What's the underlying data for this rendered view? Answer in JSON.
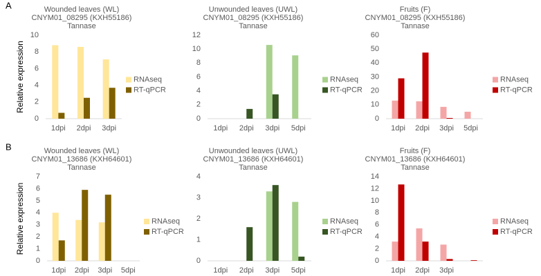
{
  "chart_data": [
    {
      "type": "bar",
      "panel": "A",
      "ylabel": "Relative expression",
      "title_lines": [
        "Wounded leaves (WL)",
        "CNYM01_08295 (KXH55186)",
        "Tannase"
      ],
      "categories": [
        "1dpi",
        "2dpi",
        "3dpi"
      ],
      "series": [
        {
          "name": "RNAseq",
          "color": "#ffe699",
          "values": [
            8.8,
            8.6,
            7.1
          ]
        },
        {
          "name": "RT-qPCR",
          "color": "#7f6000",
          "values": [
            0.7,
            2.5,
            3.7
          ]
        }
      ],
      "ylim": [
        0,
        10
      ],
      "yticks": [
        0,
        2,
        4,
        6,
        8,
        10
      ],
      "grid": false
    },
    {
      "type": "bar",
      "title_lines": [
        "Unwounded leaves (UWL)",
        "CNYM01_08295 (KXH55186)",
        "Tannase"
      ],
      "categories": [
        "1dpi",
        "2dpi",
        "3dpi",
        "5dpi"
      ],
      "series": [
        {
          "name": "RNAseq",
          "color": "#a9d18e",
          "values": [
            null,
            null,
            10.6,
            9.1
          ]
        },
        {
          "name": "RT-qPCR",
          "color": "#375623",
          "values": [
            null,
            1.4,
            3.5,
            null
          ]
        }
      ],
      "ylim": [
        0,
        12
      ],
      "yticks": [
        0,
        2,
        4,
        6,
        8,
        10,
        12
      ],
      "grid": false
    },
    {
      "type": "bar",
      "title_lines": [
        "Fruits (F)",
        "CNYM01_08295 (KXH55186)",
        "Tannase"
      ],
      "categories": [
        "1dpi",
        "2dpi",
        "3dpi",
        "5dpi"
      ],
      "series": [
        {
          "name": "RNAseq",
          "color": "#f4a6a6",
          "values": [
            13,
            12.5,
            8.5,
            5
          ]
        },
        {
          "name": "RT-qPCR",
          "color": "#c00000",
          "values": [
            29,
            47.5,
            0.5,
            null
          ]
        }
      ],
      "ylim": [
        0,
        60
      ],
      "yticks": [
        0,
        10,
        20,
        30,
        40,
        50,
        60
      ],
      "grid": false
    },
    {
      "type": "bar",
      "panel": "B",
      "ylabel": "Relative expression",
      "title_lines": [
        "Wounded leaves (WL)",
        "CNYM01_13686 (KXH64601)",
        "Tannase"
      ],
      "categories": [
        "1dpi",
        "2dpi",
        "3dpi",
        "5dpi"
      ],
      "series": [
        {
          "name": "RNAseq",
          "color": "#ffe699",
          "values": [
            4.0,
            3.4,
            3.2,
            null
          ]
        },
        {
          "name": "RT-qPCR",
          "color": "#7f6000",
          "values": [
            1.7,
            5.9,
            5.5,
            null
          ]
        }
      ],
      "ylim": [
        0,
        7
      ],
      "yticks": [
        0,
        1,
        2,
        3,
        4,
        5,
        6,
        7
      ],
      "grid": false
    },
    {
      "type": "bar",
      "title_lines": [
        "Unwounded leaves (UWL)",
        "CNYM01_13686 (KXH64601)",
        "Tannase"
      ],
      "categories": [
        "1dpi",
        "2dpi",
        "3dpi",
        "5dpi"
      ],
      "series": [
        {
          "name": "RNAseq",
          "color": "#a9d18e",
          "values": [
            null,
            null,
            3.3,
            2.8
          ]
        },
        {
          "name": "RT-qPCR",
          "color": "#375623",
          "values": [
            null,
            1.6,
            3.6,
            0.2
          ]
        }
      ],
      "ylim": [
        0,
        4
      ],
      "yticks": [
        0,
        1,
        2,
        3,
        4
      ],
      "grid": false
    },
    {
      "type": "bar",
      "title_lines": [
        "Fruits (F)",
        "CNYM01_13686 (KXH64601)",
        "Tannase"
      ],
      "categories": [
        "1dpi",
        "2dpi",
        "3dpi",
        null
      ],
      "series": [
        {
          "name": "RNAseq",
          "color": "#f4a6a6",
          "values": [
            3.2,
            5.4,
            2.7,
            null
          ]
        },
        {
          "name": "RT-qPCR",
          "color": "#c00000",
          "values": [
            12.7,
            3.2,
            0.3,
            0.1
          ]
        }
      ],
      "ylim": [
        0,
        14
      ],
      "yticks": [
        0,
        2,
        4,
        6,
        8,
        10,
        12,
        14
      ],
      "grid": false
    }
  ]
}
